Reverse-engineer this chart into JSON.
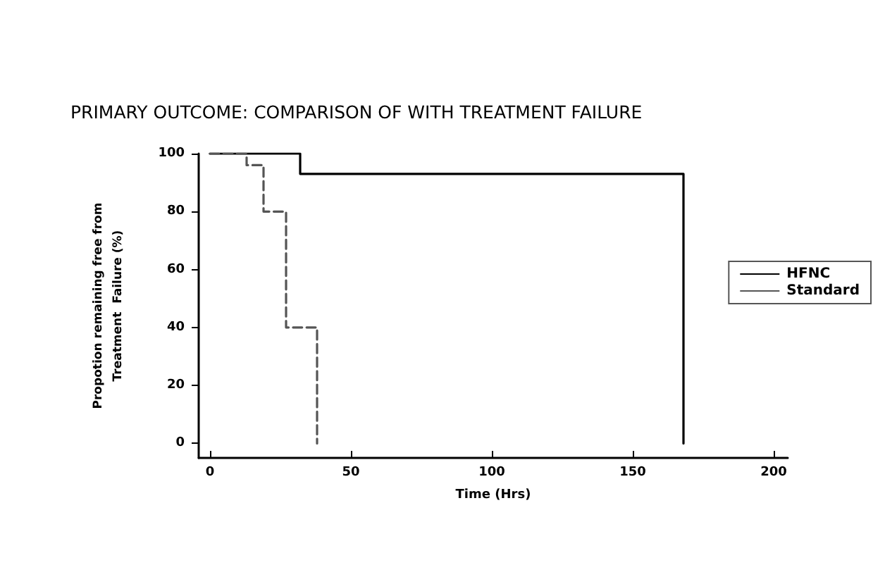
{
  "chart_data": {
    "type": "step",
    "title": "PRIMARY OUTCOME: COMPARISON OF WITH TREATMENT FAILURE",
    "xlabel": "Time (Hrs)",
    "ylabel": "Propotion remaining free from\nTreatment  Failure (%)",
    "series": [
      {
        "name": "HFNC",
        "color": "#000000",
        "line_style": "solid",
        "x": [
          0,
          32,
          168
        ],
        "values": [
          100,
          93,
          0
        ]
      },
      {
        "name": "Standard",
        "color": "#555555",
        "line_style": "dashed",
        "x": [
          0,
          13,
          19,
          27,
          38
        ],
        "values": [
          100,
          96,
          80,
          40,
          0
        ]
      }
    ],
    "xlim": [
      -4,
      205
    ],
    "xticks": [
      0,
      50,
      100,
      150,
      200
    ],
    "ylim": [
      -5,
      100
    ],
    "yticks": [
      0,
      20,
      40,
      60,
      80,
      100
    ],
    "grid": false,
    "legend": "right",
    "marker": "none"
  }
}
